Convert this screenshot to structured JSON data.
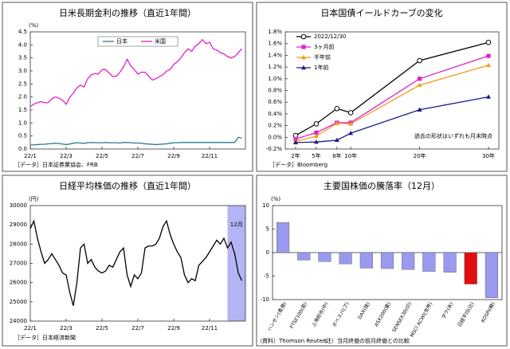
{
  "chart_data": [
    {
      "type": "line",
      "title": "日米長期金利の推移（直近1年間）",
      "y_unit": "(%)",
      "source": "［データ］日本証券業協会、FRB",
      "xlim": [
        1,
        13
      ],
      "xticks": [
        {
          "value": 1,
          "label": "22/1"
        },
        {
          "value": 3,
          "label": "22/3"
        },
        {
          "value": 5,
          "label": "22/5"
        },
        {
          "value": 7,
          "label": "22/7"
        },
        {
          "value": 9,
          "label": "22/9"
        },
        {
          "value": 11,
          "label": "22/11"
        }
      ],
      "ylim": [
        0,
        4.5
      ],
      "yticks": [
        {
          "value": 0,
          "label": "0.0"
        },
        {
          "value": 0.5,
          "label": "0.5"
        },
        {
          "value": 1,
          "label": "1.0"
        },
        {
          "value": 1.5,
          "label": "1.5"
        },
        {
          "value": 2,
          "label": "2.0"
        },
        {
          "value": 2.5,
          "label": "2.5"
        },
        {
          "value": 3,
          "label": "3.0"
        },
        {
          "value": 3.5,
          "label": "3.5"
        },
        {
          "value": 4,
          "label": "4.0"
        },
        {
          "value": 4.5,
          "label": "4.5"
        }
      ],
      "legend": "top-center",
      "x": [
        1.0,
        1.2,
        1.4,
        1.6,
        1.8,
        2.0,
        2.2,
        2.4,
        2.6,
        2.8,
        3.0,
        3.2,
        3.4,
        3.6,
        3.8,
        4.0,
        4.2,
        4.4,
        4.6,
        4.8,
        5.0,
        5.2,
        5.4,
        5.6,
        5.8,
        6.0,
        6.2,
        6.4,
        6.6,
        6.8,
        7.0,
        7.2,
        7.4,
        7.6,
        7.8,
        8.0,
        8.2,
        8.4,
        8.6,
        8.8,
        9.0,
        9.2,
        9.4,
        9.6,
        9.8,
        10.0,
        10.2,
        10.4,
        10.6,
        10.8,
        11.0,
        11.2,
        11.4,
        11.6,
        11.8,
        12.0,
        12.2,
        12.4,
        12.6,
        12.8
      ],
      "series": [
        {
          "name": "日本",
          "color": "#2b7a8c",
          "values": [
            0.15,
            0.16,
            0.17,
            0.18,
            0.18,
            0.2,
            0.21,
            0.22,
            0.21,
            0.19,
            0.17,
            0.19,
            0.22,
            0.24,
            0.23,
            0.22,
            0.24,
            0.25,
            0.24,
            0.24,
            0.24,
            0.25,
            0.24,
            0.24,
            0.24,
            0.23,
            0.25,
            0.25,
            0.24,
            0.23,
            0.23,
            0.22,
            0.2,
            0.19,
            0.18,
            0.17,
            0.18,
            0.19,
            0.2,
            0.22,
            0.24,
            0.24,
            0.25,
            0.25,
            0.25,
            0.25,
            0.25,
            0.25,
            0.25,
            0.25,
            0.25,
            0.25,
            0.25,
            0.25,
            0.25,
            0.25,
            0.25,
            0.25,
            0.45,
            0.42
          ]
        },
        {
          "name": "米国",
          "color": "#e020c8",
          "values": [
            1.63,
            1.72,
            1.78,
            1.82,
            1.78,
            1.78,
            1.93,
            2.0,
            1.95,
            1.88,
            1.72,
            1.98,
            2.15,
            2.35,
            2.45,
            2.38,
            2.7,
            2.85,
            2.9,
            2.88,
            3.05,
            3.05,
            2.92,
            2.78,
            2.8,
            2.95,
            3.15,
            3.45,
            3.2,
            3.05,
            2.88,
            2.95,
            2.95,
            2.8,
            2.65,
            2.7,
            2.78,
            2.85,
            3.0,
            3.05,
            3.25,
            3.35,
            3.5,
            3.7,
            3.85,
            3.75,
            3.95,
            4.05,
            4.2,
            4.05,
            4.1,
            3.85,
            3.8,
            3.7,
            3.65,
            3.55,
            3.5,
            3.55,
            3.7,
            3.85
          ]
        }
      ]
    },
    {
      "type": "line",
      "title": "日本国債イールドカーブの変化",
      "source": "［データ］Bloomberg",
      "annotation": "過去の形状はいずれも月末時点",
      "xlim": [
        0.5,
        31.5
      ],
      "xticks": [
        {
          "value": 2,
          "label": "2年"
        },
        {
          "value": 5,
          "label": "5年"
        },
        {
          "value": 8,
          "label": "8年"
        },
        {
          "value": 10,
          "label": "10年"
        },
        {
          "value": 20,
          "label": "20年"
        },
        {
          "value": 30,
          "label": "30年"
        }
      ],
      "ylim": [
        -0.2,
        1.8
      ],
      "yticks": [
        {
          "value": -0.2,
          "label": "-0.2%"
        },
        {
          "value": 0,
          "label": "0.0%"
        },
        {
          "value": 0.2,
          "label": "0.2%"
        },
        {
          "value": 0.4,
          "label": "0.4%"
        },
        {
          "value": 0.6,
          "label": "0.6%"
        },
        {
          "value": 0.8,
          "label": "0.8%"
        },
        {
          "value": 1.0,
          "label": "1.0%"
        },
        {
          "value": 1.2,
          "label": "1.2%"
        },
        {
          "value": 1.4,
          "label": "1.4%"
        },
        {
          "value": 1.6,
          "label": "1.6%"
        },
        {
          "value": 1.8,
          "label": "1.8%"
        }
      ],
      "legend": "top-left",
      "x": [
        2,
        5,
        8,
        10,
        20,
        30
      ],
      "series": [
        {
          "name": "2022/12/30",
          "color": "#000000",
          "marker": "circle-open",
          "values": [
            0.03,
            0.23,
            0.49,
            0.42,
            1.31,
            1.62
          ]
        },
        {
          "name": "3ヶ月前",
          "color": "#e020c8",
          "marker": "square",
          "values": [
            -0.03,
            0.08,
            0.25,
            0.25,
            1.0,
            1.39
          ]
        },
        {
          "name": "半年前",
          "color": "#f39a1e",
          "marker": "triangle",
          "values": [
            -0.07,
            0.02,
            0.24,
            0.23,
            0.89,
            1.23
          ]
        },
        {
          "name": "1年前",
          "color": "#1a1a8c",
          "marker": "triangle",
          "values": [
            -0.09,
            -0.08,
            -0.05,
            0.07,
            0.47,
            0.69
          ]
        }
      ]
    },
    {
      "type": "line",
      "title": "日経平均株価の推移（直近1年間）",
      "y_unit": "(円)",
      "source": "［データ］日本経済新聞",
      "highlight_range": [
        12,
        13
      ],
      "highlight_label": "12月",
      "highlight_color": "#b4b4f5",
      "xlim": [
        1,
        13
      ],
      "xticks": [
        {
          "value": 1,
          "label": "22/1"
        },
        {
          "value": 3,
          "label": "22/3"
        },
        {
          "value": 5,
          "label": "22/5"
        },
        {
          "value": 7,
          "label": "22/7"
        },
        {
          "value": 9,
          "label": "22/9"
        },
        {
          "value": 11,
          "label": "22/11"
        }
      ],
      "ylim": [
        24000,
        30000
      ],
      "yticks": [
        24000,
        25000,
        26000,
        27000,
        28000,
        29000,
        30000
      ],
      "x": [
        1.0,
        1.2,
        1.4,
        1.6,
        1.8,
        2.0,
        2.2,
        2.4,
        2.6,
        2.8,
        3.0,
        3.2,
        3.4,
        3.6,
        3.8,
        4.0,
        4.2,
        4.4,
        4.6,
        4.8,
        5.0,
        5.2,
        5.4,
        5.6,
        5.8,
        6.0,
        6.2,
        6.4,
        6.6,
        6.8,
        7.0,
        7.2,
        7.4,
        7.6,
        7.8,
        8.0,
        8.2,
        8.4,
        8.6,
        8.8,
        9.0,
        9.2,
        9.4,
        9.6,
        9.8,
        10.0,
        10.2,
        10.4,
        10.6,
        10.8,
        11.0,
        11.2,
        11.4,
        11.6,
        11.8,
        12.0,
        12.2,
        12.4,
        12.6,
        12.8
      ],
      "series": [
        {
          "color": "#000000",
          "values": [
            28800,
            29200,
            28300,
            27600,
            27000,
            27200,
            27500,
            27200,
            26900,
            26500,
            26400,
            25500,
            24800,
            26000,
            27800,
            28000,
            27000,
            27200,
            26800,
            26600,
            26500,
            26600,
            26900,
            26800,
            27200,
            27600,
            27800,
            26400,
            25800,
            26400,
            26200,
            26500,
            27800,
            27900,
            27900,
            27990,
            28300,
            28900,
            29200,
            28500,
            28000,
            27600,
            27300,
            26400,
            26000,
            26200,
            26100,
            26900,
            27100,
            27300,
            27600,
            27900,
            28200,
            28000,
            28300,
            27800,
            28100,
            27500,
            26500,
            26100
          ]
        }
      ]
    },
    {
      "type": "bar",
      "title": "主要国株価の騰落率（12月）",
      "y_unit": "(%)",
      "source": "（資料）Thomson Reuters",
      "note": "（注）当月終値の前月終値との比較",
      "categories": [
        "ハンセン(香港)",
        "FTSE100(英)",
        "上海総合(中)",
        "ボベスパ(ブ)",
        "DAX(独)",
        "ASX200(豪)",
        "SENSEX30(印)",
        "MSCI ACWI(世界)",
        "ダウ(米)",
        "日経平均(日)",
        "KOSPI(韓)"
      ],
      "values": [
        6.4,
        -1.6,
        -1.9,
        -2.4,
        -3.3,
        -3.4,
        -3.6,
        -4.0,
        -4.2,
        -6.7,
        -9.6
      ],
      "colors": [
        "#9999ee",
        "#9999ee",
        "#9999ee",
        "#9999ee",
        "#9999ee",
        "#9999ee",
        "#9999ee",
        "#9999ee",
        "#9999ee",
        "#e01010",
        "#9999ee"
      ],
      "ylim": [
        -10,
        10
      ],
      "yticks": [
        10,
        5,
        0,
        -5,
        -10
      ]
    }
  ]
}
